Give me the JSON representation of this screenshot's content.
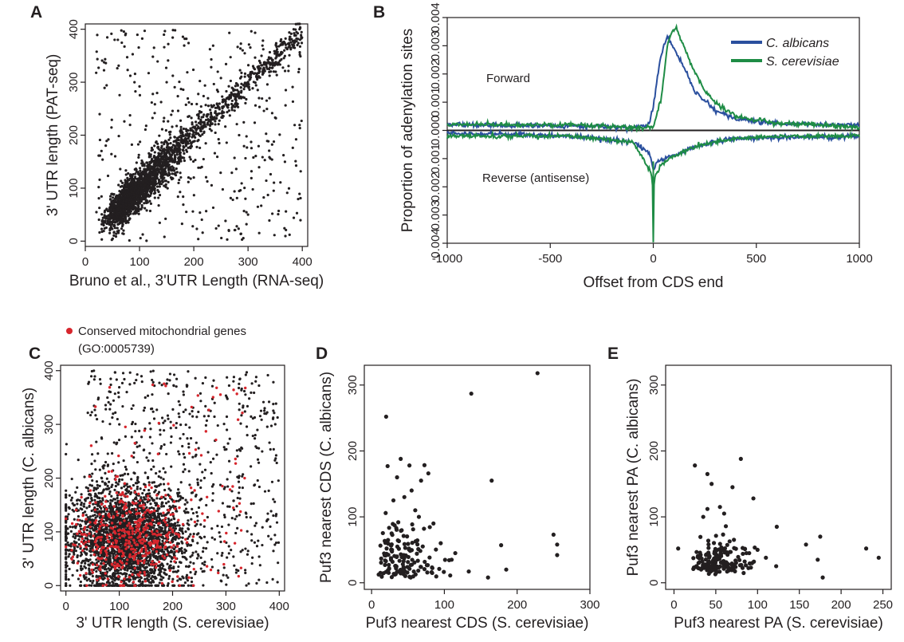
{
  "panels": {
    "A": {
      "label": "A"
    },
    "B": {
      "label": "B"
    },
    "C": {
      "label": "C"
    },
    "D": {
      "label": "D"
    },
    "E": {
      "label": "E"
    }
  },
  "colors": {
    "black": "#231f20",
    "red": "#d7262d",
    "blue": "#2a4f9e",
    "green": "#1e8c45"
  },
  "chart_data": [
    {
      "id": "A",
      "type": "scatter",
      "xlabel": "Bruno et al., 3'UTR Length (RNA-seq)",
      "ylabel": "3' UTR length (PAT-seq)",
      "xlim": [
        0,
        410
      ],
      "ylim": [
        -10,
        410
      ],
      "xticks": [
        0,
        100,
        200,
        300,
        400
      ],
      "yticks": [
        0,
        100,
        200,
        300,
        400
      ],
      "xtick_labels": [
        "0",
        "100",
        "200",
        "300",
        "400"
      ],
      "ytick_labels": [
        "0",
        "100",
        "200",
        "300",
        "400"
      ],
      "n_points_approx": 2600,
      "pattern": "dense cloud 30-180 both axes, strong diagonal y≈x up to 400, scattered points off-diagonal",
      "series": [
        {
          "color": "#231f20",
          "points": [
            [
              60,
              60
            ],
            [
              80,
              90
            ],
            [
              100,
              100
            ],
            [
              120,
              125
            ],
            [
              150,
              150
            ],
            [
              180,
              185
            ],
            [
              200,
              205
            ],
            [
              240,
              245
            ],
            [
              280,
              285
            ],
            [
              320,
              330
            ],
            [
              360,
              370
            ],
            [
              395,
              400
            ],
            [
              60,
              380
            ],
            [
              300,
              50
            ],
            [
              200,
              120
            ],
            [
              150,
              300
            ]
          ]
        }
      ]
    },
    {
      "id": "B",
      "type": "line",
      "xlabel": "Offset from CDS end",
      "ylabel": "Proportion of adenylation sites",
      "xlim": [
        -1000,
        1000
      ],
      "ylim": [
        -0.004,
        0.004
      ],
      "xticks": [
        -1000,
        -500,
        0,
        500,
        1000
      ],
      "xtick_labels": [
        "-1000",
        "-500",
        "0",
        "500",
        "1000"
      ],
      "yticks": [
        0.004,
        0.003,
        0.002,
        0.001,
        0.0,
        -0.001,
        -0.002,
        -0.003,
        -0.004
      ],
      "ytick_labels": [
        "0.004",
        "0.003",
        "0.002",
        "0.001",
        "0.000",
        "0.001",
        "0.002",
        "0.003",
        "0.004"
      ],
      "annotations": [
        "Forward",
        "Reverse (antisense)"
      ],
      "legend": {
        "position": "top-right"
      },
      "series": [
        {
          "name": "C. albicans",
          "color": "#2a4f9e",
          "forward": {
            "x": [
              -1000,
              -400,
              -100,
              -20,
              0,
              30,
              55,
              70,
              100,
              150,
              200,
              300,
              400,
              600,
              800,
              1000
            ],
            "y": [
              0.0002,
              0.00015,
              0.0001,
              0.0002,
              0.0008,
              0.0024,
              0.0031,
              0.0033,
              0.0029,
              0.0022,
              0.0014,
              0.0007,
              0.0004,
              0.00025,
              0.0002,
              0.0002
            ]
          },
          "reverse": {
            "x": [
              -1000,
              -400,
              -100,
              -20,
              0,
              20,
              60,
              120,
              200,
              300,
              400,
              600,
              800,
              1000
            ],
            "y": [
              -0.0001,
              -0.0002,
              -0.0004,
              -0.0008,
              -0.0014,
              -0.0011,
              -0.001,
              -0.0008,
              -0.0006,
              -0.0004,
              -0.0003,
              -0.00025,
              -0.00025,
              -0.0002
            ]
          }
        },
        {
          "name": "S. cerevisiae",
          "color": "#1e8c45",
          "forward": {
            "x": [
              -1000,
              -400,
              -100,
              0,
              40,
              70,
              90,
              110,
              130,
              180,
              250,
              300,
              400,
              600,
              800,
              1000
            ],
            "y": [
              0.0002,
              0.0002,
              0.0001,
              0.0001,
              0.0012,
              0.0031,
              0.0035,
              0.0036,
              0.0033,
              0.0024,
              0.0014,
              0.001,
              0.0005,
              0.00025,
              0.0002,
              0.0001
            ]
          },
          "reverse": {
            "x": [
              -1000,
              -400,
              -100,
              -10,
              -3,
              0,
              3,
              10,
              40,
              100,
              200,
              300,
              400,
              600,
              800,
              1000
            ],
            "y": [
              -0.0002,
              -0.0002,
              -0.0004,
              -0.0015,
              -0.002,
              -0.0039,
              -0.002,
              -0.0016,
              -0.0012,
              -0.0009,
              -0.0006,
              -0.0004,
              -0.0003,
              -0.0002,
              -0.0002,
              -0.0002
            ]
          }
        }
      ]
    },
    {
      "id": "C",
      "type": "scatter",
      "xlabel": "3' UTR length (S. cerevisiae)",
      "ylabel": "3' UTR length (C. albicans)",
      "xlim": [
        -10,
        410
      ],
      "ylim": [
        -10,
        410
      ],
      "xticks": [
        0,
        100,
        200,
        300,
        400
      ],
      "yticks": [
        0,
        100,
        200,
        300,
        400
      ],
      "xtick_labels": [
        "0",
        "100",
        "200",
        "300",
        "400"
      ],
      "ytick_labels": [
        "0",
        "100",
        "200",
        "300",
        "400"
      ],
      "legend_text": [
        "Conserved mitochondrial genes",
        "(GO:0005739)"
      ],
      "legend": {
        "position": "top-left"
      },
      "series": [
        {
          "name": "Conserved mitochondrial genes",
          "color": "#d7262d",
          "n_points_approx": 500
        },
        {
          "color": "#231f20",
          "n_points_approx": 3200
        }
      ]
    },
    {
      "id": "D",
      "type": "scatter",
      "xlabel": "Puf3 nearest CDS (S. cerevisiae)",
      "ylabel": "Puf3 nearest CDS (C. albicans)",
      "xlim": [
        -10,
        300
      ],
      "ylim": [
        -10,
        330
      ],
      "xticks": [
        0,
        100,
        200,
        300
      ],
      "yticks": [
        0,
        100,
        200,
        300
      ],
      "xtick_labels": [
        "0",
        "100",
        "200",
        "300"
      ],
      "ytick_labels": [
        "0",
        "100",
        "200",
        "300"
      ],
      "series": [
        {
          "color": "#231f20",
          "points": [
            [
              228,
              318
            ],
            [
              137,
              287
            ],
            [
              20,
              252
            ],
            [
              165,
              155
            ],
            [
              40,
              188
            ],
            [
              22,
              177
            ],
            [
              52,
              178
            ],
            [
              78,
              166
            ],
            [
              68,
              155
            ],
            [
              250,
              73
            ],
            [
              255,
              58
            ],
            [
              255,
              42
            ],
            [
              178,
              57
            ],
            [
              160,
              8
            ],
            [
              185,
              20
            ],
            [
              110,
              35
            ],
            [
              115,
              45
            ],
            [
              95,
              60
            ],
            [
              85,
              90
            ],
            [
              60,
              110
            ],
            [
              55,
              140
            ],
            [
              35,
              160
            ],
            [
              45,
              130
            ],
            [
              30,
              125
            ],
            [
              65,
              100
            ],
            [
              72,
              82
            ]
          ]
        }
      ]
    },
    {
      "id": "E",
      "type": "scatter",
      "xlabel": "Puf3 nearest PA (S. cerevisiae)",
      "ylabel": "Puf3 nearest PA (C. albicans)",
      "xlim": [
        -10,
        260
      ],
      "ylim": [
        -10,
        330
      ],
      "xticks": [
        0,
        50,
        100,
        150,
        200,
        250
      ],
      "yticks": [
        0,
        100,
        200,
        300
      ],
      "xtick_labels": [
        "0",
        "50",
        "100",
        "150",
        "200",
        "250"
      ],
      "ytick_labels": [
        "0",
        "100",
        "200",
        "300"
      ],
      "series": [
        {
          "color": "#231f20",
          "points": [
            [
              80,
              188
            ],
            [
              25,
              178
            ],
            [
              40,
              165
            ],
            [
              70,
              145
            ],
            [
              45,
              150
            ],
            [
              95,
              128
            ],
            [
              55,
              115
            ],
            [
              40,
              112
            ],
            [
              60,
              105
            ],
            [
              35,
              100
            ],
            [
              123,
              85
            ],
            [
              175,
              70
            ],
            [
              158,
              58
            ],
            [
              172,
              35
            ],
            [
              178,
              8
            ],
            [
              230,
              52
            ],
            [
              245,
              38
            ],
            [
              100,
              50
            ],
            [
              90,
              45
            ],
            [
              110,
              38
            ],
            [
              5,
              52
            ]
          ]
        }
      ]
    }
  ]
}
